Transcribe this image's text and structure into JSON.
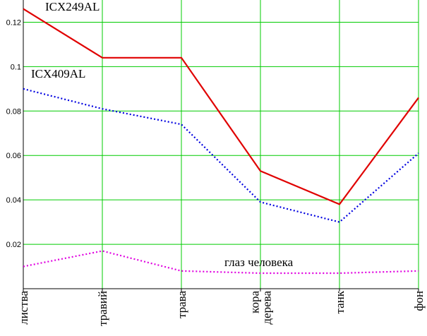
{
  "chart_data": {
    "type": "line",
    "title": "",
    "xlabel": "",
    "ylabel": "",
    "categories": [
      "листва",
      "травий",
      "трава",
      "кора дерева",
      "танк",
      "фон"
    ],
    "ylim": [
      0,
      0.13
    ],
    "yticks": [
      0.02,
      0.04,
      0.06,
      0.08,
      0.1,
      0.12
    ],
    "grid": true,
    "series": [
      {
        "name": "ICX249AL",
        "values": [
          0.126,
          0.104,
          0.104,
          0.053,
          0.038,
          0.086
        ],
        "color": "#e00000",
        "style": "solid"
      },
      {
        "name": "ICX409AL",
        "values": [
          0.09,
          0.081,
          0.074,
          0.039,
          0.03,
          0.061
        ],
        "color": "#0000e0",
        "style": "dotted"
      },
      {
        "name": "глаз человека",
        "values": [
          0.01,
          0.017,
          0.008,
          0.007,
          0.007,
          0.008
        ],
        "color": "#e000e0",
        "style": "dotted"
      }
    ],
    "grid_color": "#00cc00"
  }
}
